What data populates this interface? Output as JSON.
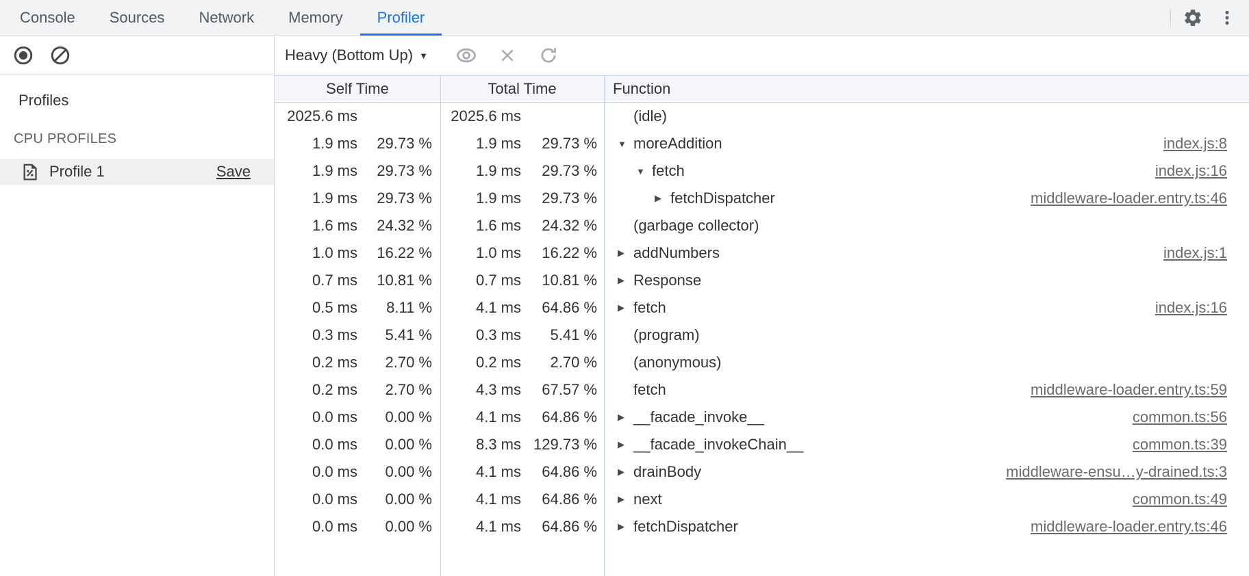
{
  "colors": {
    "accent": "#1a73e8",
    "grid_border": "#c8d3ec",
    "icon_dark": "#474747",
    "icon_gray": "#5f6368",
    "icon_disabled": "#a9acb1",
    "link": "#6b6b6b",
    "selected_row_bg": "#f0f0f0"
  },
  "tabs": {
    "items": [
      {
        "label": "Console",
        "active": false
      },
      {
        "label": "Sources",
        "active": false
      },
      {
        "label": "Network",
        "active": false
      },
      {
        "label": "Memory",
        "active": false
      },
      {
        "label": "Profiler",
        "active": true
      }
    ]
  },
  "tabbar_icons": {
    "settings": "gear-icon",
    "menu": "three-dot-menu-icon"
  },
  "toolbar": {
    "record_icon": "record-icon",
    "clear_icon": "clear-icon",
    "view_mode": "Heavy (Bottom Up)",
    "caret": "▼",
    "focus_icon": "eye-icon",
    "exclude_icon": "x-icon",
    "restore_icon": "refresh-icon"
  },
  "sidebar": {
    "title": "Profiles",
    "section": "CPU PROFILES",
    "profiles": [
      {
        "name": "Profile 1",
        "action": "Save",
        "selected": true,
        "icon": "profile-document-icon"
      }
    ]
  },
  "table": {
    "columns": [
      "Self Time",
      "Total Time",
      "Function"
    ],
    "rows": [
      {
        "self_ms": "2025.6 ms",
        "self_pct": "",
        "total_ms": "2025.6 ms",
        "total_pct": "",
        "fn": "(idle)",
        "indent": 0,
        "arrow": "none",
        "link": ""
      },
      {
        "self_ms": "1.9 ms",
        "self_pct": "29.73 %",
        "total_ms": "1.9 ms",
        "total_pct": "29.73 %",
        "fn": "moreAddition",
        "indent": 0,
        "arrow": "down",
        "link": "index.js:8"
      },
      {
        "self_ms": "1.9 ms",
        "self_pct": "29.73 %",
        "total_ms": "1.9 ms",
        "total_pct": "29.73 %",
        "fn": "fetch",
        "indent": 1,
        "arrow": "down",
        "link": "index.js:16"
      },
      {
        "self_ms": "1.9 ms",
        "self_pct": "29.73 %",
        "total_ms": "1.9 ms",
        "total_pct": "29.73 %",
        "fn": "fetchDispatcher",
        "indent": 2,
        "arrow": "right",
        "link": "middleware-loader.entry.ts:46"
      },
      {
        "self_ms": "1.6 ms",
        "self_pct": "24.32 %",
        "total_ms": "1.6 ms",
        "total_pct": "24.32 %",
        "fn": "(garbage collector)",
        "indent": 0,
        "arrow": "none",
        "link": ""
      },
      {
        "self_ms": "1.0 ms",
        "self_pct": "16.22 %",
        "total_ms": "1.0 ms",
        "total_pct": "16.22 %",
        "fn": "addNumbers",
        "indent": 0,
        "arrow": "right",
        "link": "index.js:1"
      },
      {
        "self_ms": "0.7 ms",
        "self_pct": "10.81 %",
        "total_ms": "0.7 ms",
        "total_pct": "10.81 %",
        "fn": "Response",
        "indent": 0,
        "arrow": "right",
        "link": ""
      },
      {
        "self_ms": "0.5 ms",
        "self_pct": "8.11 %",
        "total_ms": "4.1 ms",
        "total_pct": "64.86 %",
        "fn": "fetch",
        "indent": 0,
        "arrow": "right",
        "link": "index.js:16"
      },
      {
        "self_ms": "0.3 ms",
        "self_pct": "5.41 %",
        "total_ms": "0.3 ms",
        "total_pct": "5.41 %",
        "fn": "(program)",
        "indent": 0,
        "arrow": "none",
        "link": ""
      },
      {
        "self_ms": "0.2 ms",
        "self_pct": "2.70 %",
        "total_ms": "0.2 ms",
        "total_pct": "2.70 %",
        "fn": "(anonymous)",
        "indent": 0,
        "arrow": "none",
        "link": ""
      },
      {
        "self_ms": "0.2 ms",
        "self_pct": "2.70 %",
        "total_ms": "4.3 ms",
        "total_pct": "67.57 %",
        "fn": "fetch",
        "indent": 0,
        "arrow": "none",
        "link": "middleware-loader.entry.ts:59"
      },
      {
        "self_ms": "0.0 ms",
        "self_pct": "0.00 %",
        "total_ms": "4.1 ms",
        "total_pct": "64.86 %",
        "fn": "__facade_invoke__",
        "indent": 0,
        "arrow": "right",
        "link": "common.ts:56"
      },
      {
        "self_ms": "0.0 ms",
        "self_pct": "0.00 %",
        "total_ms": "8.3 ms",
        "total_pct": "129.73 %",
        "fn": "__facade_invokeChain__",
        "indent": 0,
        "arrow": "right",
        "link": "common.ts:39"
      },
      {
        "self_ms": "0.0 ms",
        "self_pct": "0.00 %",
        "total_ms": "4.1 ms",
        "total_pct": "64.86 %",
        "fn": "drainBody",
        "indent": 0,
        "arrow": "right",
        "link": "middleware-ensu…y-drained.ts:3"
      },
      {
        "self_ms": "0.0 ms",
        "self_pct": "0.00 %",
        "total_ms": "4.1 ms",
        "total_pct": "64.86 %",
        "fn": "next",
        "indent": 0,
        "arrow": "right",
        "link": "common.ts:49"
      },
      {
        "self_ms": "0.0 ms",
        "self_pct": "0.00 %",
        "total_ms": "4.1 ms",
        "total_pct": "64.86 %",
        "fn": "fetchDispatcher",
        "indent": 0,
        "arrow": "right",
        "link": "middleware-loader.entry.ts:46"
      }
    ]
  }
}
